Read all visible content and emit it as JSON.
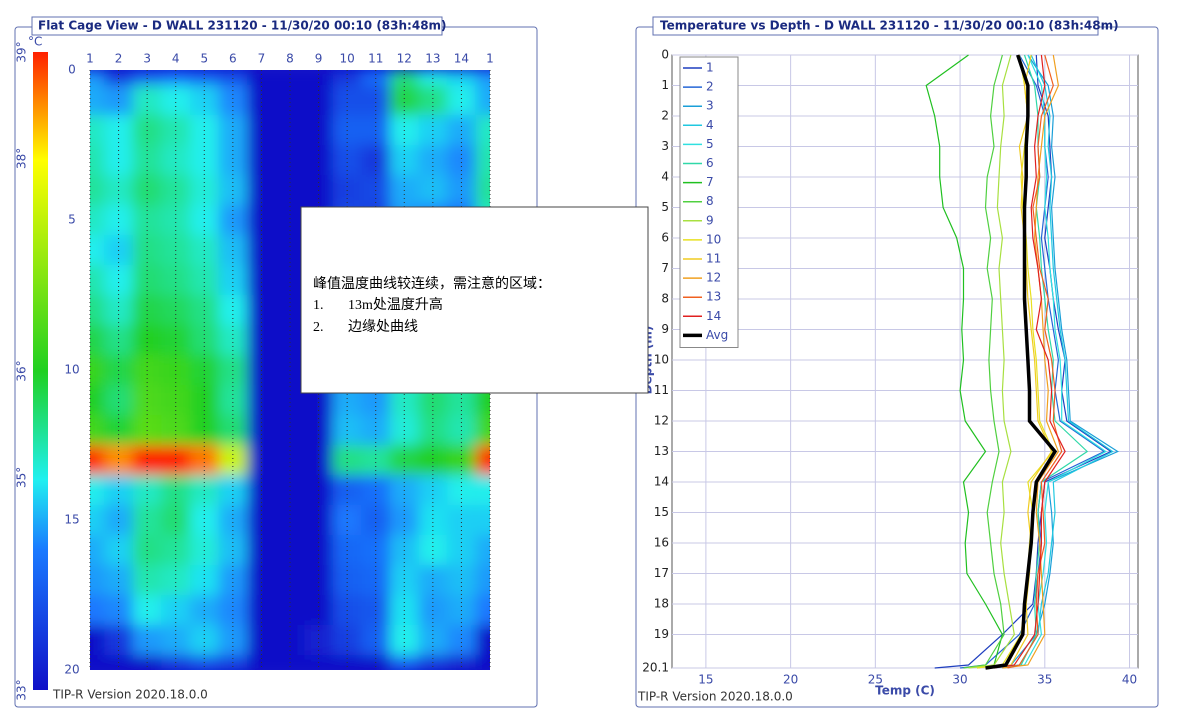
{
  "chart_data": [
    {
      "type": "heatmap",
      "title": "Flat Cage View - D WALL 231120 - 11/30/20 00:10 (83h:48m)",
      "columns": [
        "1",
        "2",
        "3",
        "4",
        "5",
        "6",
        "7",
        "8",
        "9",
        "10",
        "11",
        "12",
        "13",
        "14",
        "1"
      ],
      "ylim": [
        0,
        20
      ],
      "yticks": [
        0,
        5,
        10,
        15,
        20
      ],
      "colorbar_unit": "°C",
      "colorbar_lim": [
        33,
        39
      ],
      "colorbar_ticks": [
        {
          "value": 33,
          "label": "33°"
        },
        {
          "value": 35,
          "label": "35°"
        },
        {
          "value": 36,
          "label": "36°"
        },
        {
          "value": 38,
          "label": "38°"
        },
        {
          "value": 39,
          "label": "39°"
        }
      ],
      "footer": "TIP-R Version 2020.18.0.0"
    },
    {
      "type": "line",
      "title": "Temperature vs Depth - D WALL 231120 - 11/30/20 00:10 (83h:48m)",
      "xlabel": "Temp (C)",
      "ylabel": "Depth (m)",
      "footer": "TIP-R Version 2020.18.0.0",
      "xlim": [
        13,
        40.5
      ],
      "xticks": [
        15,
        20,
        25,
        30,
        35,
        40
      ],
      "ylim": [
        0,
        20.1
      ],
      "yticks": [
        0,
        1,
        2,
        3,
        4,
        5,
        6,
        7,
        8,
        9,
        10,
        11,
        12,
        13,
        14,
        15,
        16,
        17,
        18,
        19,
        20.1
      ],
      "grid": true,
      "legend": "upper-left",
      "y": [
        0,
        1,
        2,
        3,
        4,
        5,
        6,
        7,
        8,
        9,
        10,
        11,
        12,
        13,
        14,
        15,
        16,
        17,
        18,
        19,
        20,
        20.1
      ],
      "series": [
        {
          "name": "1",
          "color": "#1f3fbf",
          "values": [
            34.5,
            34.6,
            35.2,
            35.3,
            35.4,
            35.2,
            35.0,
            35.3,
            35.5,
            35.8,
            36.2,
            36.0,
            36.3,
            38.9,
            35.0,
            34.8,
            34.6,
            34.5,
            34.3,
            32.5,
            30.5,
            28.5
          ]
        },
        {
          "name": "2",
          "color": "#2566d6",
          "values": [
            33.5,
            34.5,
            35.0,
            35.0,
            35.2,
            35.0,
            34.8,
            35.0,
            35.2,
            35.5,
            35.8,
            35.6,
            35.9,
            38.5,
            34.8,
            34.6,
            34.8,
            34.6,
            34.4,
            33.5,
            31.5,
            30.0
          ]
        },
        {
          "name": "3",
          "color": "#1a9fd8",
          "values": [
            34.0,
            35.2,
            35.5,
            35.4,
            35.6,
            35.4,
            35.5,
            35.6,
            35.8,
            36.0,
            36.3,
            36.4,
            36.5,
            39.3,
            35.2,
            35.4,
            35.5,
            35.3,
            35.0,
            34.5,
            33.0,
            31.5
          ]
        },
        {
          "name": "4",
          "color": "#20c8e0",
          "values": [
            34.2,
            35.0,
            35.3,
            35.2,
            35.4,
            35.3,
            35.4,
            35.5,
            35.7,
            35.9,
            36.2,
            36.3,
            36.4,
            39.0,
            35.5,
            35.6,
            35.4,
            35.2,
            34.8,
            34.6,
            33.5,
            32.0
          ]
        },
        {
          "name": "5",
          "color": "#30e0e0",
          "values": [
            34.0,
            34.8,
            35.0,
            35.0,
            35.1,
            35.0,
            35.2,
            35.3,
            35.5,
            35.6,
            35.9,
            36.0,
            36.0,
            38.6,
            35.2,
            35.0,
            35.1,
            34.9,
            34.6,
            34.8,
            33.8,
            32.5
          ]
        },
        {
          "name": "6",
          "color": "#30d8a8",
          "values": [
            33.8,
            34.4,
            34.6,
            34.6,
            34.7,
            34.5,
            34.7,
            34.8,
            35.0,
            35.2,
            35.5,
            35.4,
            35.6,
            37.5,
            34.8,
            34.6,
            34.7,
            34.5,
            34.4,
            34.5,
            33.6,
            32.5
          ]
        },
        {
          "name": "7",
          "color": "#20c020",
          "values": [
            30.5,
            28.0,
            28.5,
            28.8,
            28.8,
            29.0,
            29.8,
            30.2,
            30.2,
            30.1,
            30.2,
            30.0,
            30.3,
            31.5,
            30.2,
            30.5,
            30.3,
            30.4,
            31.5,
            32.5,
            32.0,
            31.0
          ]
        },
        {
          "name": "8",
          "color": "#50d040",
          "values": [
            32.5,
            32.0,
            31.8,
            32.0,
            31.6,
            31.5,
            31.8,
            31.6,
            31.9,
            31.8,
            31.7,
            31.8,
            32.0,
            32.3,
            31.9,
            31.6,
            31.8,
            32.0,
            32.4,
            32.6,
            31.5,
            30.2
          ]
        },
        {
          "name": "9",
          "color": "#a8e040",
          "values": [
            33.0,
            32.5,
            32.6,
            32.4,
            32.3,
            32.2,
            32.5,
            32.3,
            32.4,
            32.5,
            32.6,
            32.5,
            32.6,
            33.0,
            32.5,
            32.6,
            32.4,
            32.6,
            32.9,
            33.2,
            32.0,
            30.5
          ]
        },
        {
          "name": "10",
          "color": "#e8e020",
          "values": [
            33.5,
            33.8,
            34.0,
            33.8,
            33.6,
            33.7,
            33.9,
            34.0,
            34.2,
            34.3,
            34.5,
            34.6,
            34.7,
            35.5,
            34.0,
            34.3,
            34.1,
            34.0,
            33.8,
            33.6,
            32.5,
            31.0
          ]
        },
        {
          "name": "11",
          "color": "#f0cc20",
          "values": [
            34.2,
            33.8,
            34.0,
            33.5,
            33.7,
            33.6,
            33.8,
            33.9,
            34.0,
            34.2,
            34.4,
            34.5,
            34.6,
            35.4,
            34.2,
            34.0,
            34.2,
            34.1,
            33.9,
            34.0,
            33.0,
            31.8
          ]
        },
        {
          "name": "12",
          "color": "#f0a020",
          "values": [
            35.5,
            35.8,
            35.0,
            34.8,
            34.6,
            34.5,
            34.4,
            34.6,
            34.8,
            34.9,
            35.0,
            35.2,
            35.1,
            35.8,
            34.6,
            34.5,
            34.7,
            34.8,
            34.9,
            35.0,
            34.0,
            32.5
          ]
        },
        {
          "name": "13",
          "color": "#f06020",
          "values": [
            35.0,
            35.5,
            34.8,
            34.6,
            34.7,
            34.3,
            34.5,
            34.7,
            35.2,
            35.0,
            35.4,
            35.6,
            35.5,
            36.0,
            34.8,
            34.9,
            35.0,
            34.6,
            34.5,
            34.6,
            33.5,
            32.8
          ]
        },
        {
          "name": "14",
          "color": "#e02020",
          "values": [
            34.8,
            35.0,
            34.6,
            34.4,
            34.5,
            34.2,
            34.3,
            34.6,
            34.8,
            34.5,
            35.2,
            35.4,
            35.3,
            36.2,
            35.0,
            34.8,
            34.8,
            34.7,
            34.6,
            34.4,
            33.2,
            32.0
          ]
        },
        {
          "name": "Avg",
          "color": "#000000",
          "values": [
            33.4,
            34.0,
            34.0,
            33.9,
            33.9,
            33.8,
            33.8,
            33.8,
            33.8,
            33.9,
            34.0,
            34.1,
            34.1,
            35.6,
            34.5,
            34.3,
            34.2,
            34.0,
            33.8,
            33.7,
            32.7,
            31.5
          ]
        }
      ]
    }
  ],
  "note": {
    "heading": "峰值温度曲线较连续，需注意的区域：",
    "items": [
      {
        "num": "1.",
        "text": "13m处温度升高"
      },
      {
        "num": "2.",
        "text": "边缘处曲线"
      }
    ]
  }
}
